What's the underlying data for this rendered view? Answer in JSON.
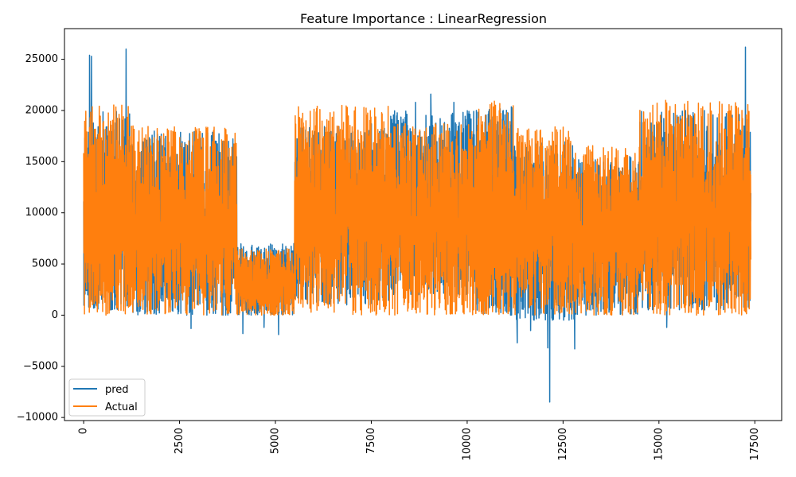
{
  "chart_data": {
    "type": "line",
    "title": "Feature Importance : LinearRegression",
    "xlabel": "",
    "ylabel": "",
    "xlim": [
      -500,
      18200
    ],
    "ylim": [
      -10300,
      28000
    ],
    "x_ticks": [
      0,
      2500,
      5000,
      7500,
      10000,
      12500,
      15000,
      17500
    ],
    "x_tick_labels": [
      "0",
      "2500",
      "5000",
      "7500",
      "10000",
      "12500",
      "15000",
      "17500"
    ],
    "x_tick_rotation": 90,
    "y_ticks": [
      -10000,
      -5000,
      0,
      5000,
      10000,
      15000,
      20000,
      25000
    ],
    "y_tick_labels": [
      "−10000",
      "−5000",
      "0",
      "5000",
      "10000",
      "15000",
      "20000",
      "25000"
    ],
    "grid": false,
    "legend_position": "lower-left",
    "n_points": 17379,
    "series": [
      {
        "name": "pred",
        "color": "#1f77b4",
        "segments": [
          {
            "x_start": 0,
            "x_end": 1200,
            "low": 500,
            "high": 20000
          },
          {
            "x_start": 1200,
            "x_end": 4000,
            "low": 0,
            "high": 18000
          },
          {
            "x_start": 4000,
            "x_end": 5500,
            "low": 0,
            "high": 7000
          },
          {
            "x_start": 5500,
            "x_end": 8000,
            "low": 1000,
            "high": 18500
          },
          {
            "x_start": 8000,
            "x_end": 10200,
            "low": 2000,
            "high": 20000
          },
          {
            "x_start": 10200,
            "x_end": 11200,
            "low": 0,
            "high": 20500
          },
          {
            "x_start": 11200,
            "x_end": 12800,
            "low": -500,
            "high": 17000
          },
          {
            "x_start": 12800,
            "x_end": 14500,
            "low": 0,
            "high": 15500
          },
          {
            "x_start": 14500,
            "x_end": 17400,
            "low": 500,
            "high": 20000
          }
        ],
        "notable_points": [
          {
            "x": 150,
            "y": 25400
          },
          {
            "x": 200,
            "y": 25300
          },
          {
            "x": 1100,
            "y": 26000
          },
          {
            "x": 2800,
            "y": -1300
          },
          {
            "x": 4150,
            "y": -1800
          },
          {
            "x": 4700,
            "y": -1200
          },
          {
            "x": 5080,
            "y": -1900
          },
          {
            "x": 7500,
            "y": 18700
          },
          {
            "x": 8650,
            "y": 20800
          },
          {
            "x": 9050,
            "y": 21600
          },
          {
            "x": 9650,
            "y": 20800
          },
          {
            "x": 11300,
            "y": -2700
          },
          {
            "x": 11650,
            "y": -1500
          },
          {
            "x": 12100,
            "y": -3200
          },
          {
            "x": 12150,
            "y": -8500
          },
          {
            "x": 12800,
            "y": -3300
          },
          {
            "x": 14950,
            "y": 17500
          },
          {
            "x": 15200,
            "y": -1200
          },
          {
            "x": 17250,
            "y": 26200
          },
          {
            "x": 17400,
            "y": 20400
          }
        ]
      },
      {
        "name": "Actual",
        "color": "#ff7f0e",
        "segments": [
          {
            "x_start": 0,
            "x_end": 1200,
            "low": 0,
            "high": 20600
          },
          {
            "x_start": 1200,
            "x_end": 4000,
            "low": 0,
            "high": 18500
          },
          {
            "x_start": 4000,
            "x_end": 5500,
            "low": 0,
            "high": 6500
          },
          {
            "x_start": 5500,
            "x_end": 8000,
            "low": 0,
            "high": 20500
          },
          {
            "x_start": 8000,
            "x_end": 10200,
            "low": 0,
            "high": 18700
          },
          {
            "x_start": 10200,
            "x_end": 11200,
            "low": 0,
            "high": 21000
          },
          {
            "x_start": 11200,
            "x_end": 12800,
            "low": 0,
            "high": 18500
          },
          {
            "x_start": 12800,
            "x_end": 14500,
            "low": 0,
            "high": 16600
          },
          {
            "x_start": 14500,
            "x_end": 17400,
            "low": 0,
            "high": 21000
          }
        ]
      }
    ]
  }
}
